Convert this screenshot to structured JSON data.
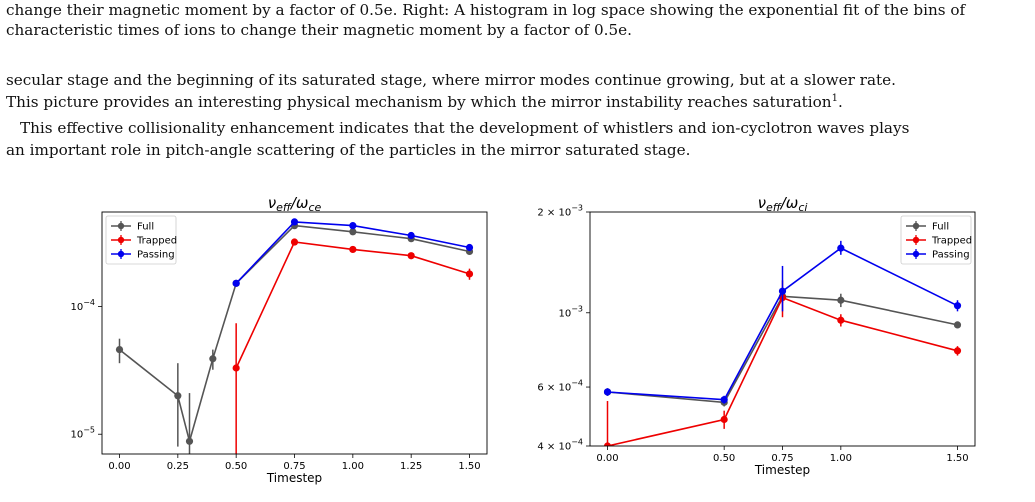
{
  "text": {
    "caption_line1": "change their magnetic moment by a factor of 0.5e. Right: A histogram in log space showing the exponential fit of the bins of",
    "caption_line2": "characteristic times of ions to change their magnetic moment by a factor of 0.5e.",
    "p1_line1": "secular stage and the beginning of its saturated stage, where mirror modes continue growing, but at a slower rate.",
    "p1_line2": "This picture provides an interesting physical mechanism by which the mirror instability reaches saturation",
    "footnote_mark": "1",
    "p1_end": ".",
    "p2_line1": "This effective collisionality enhancement indicates that the development of whistlers and ion-cyclotron waves plays",
    "p2_line2": "an important role in pitch-angle scattering of the particles in the mirror saturated stage."
  },
  "chart_data": [
    {
      "type": "line",
      "title": "ν_eff/ω_ce",
      "xlabel": "Timestep",
      "ylabel": "",
      "yscale": "log",
      "xlim": [
        -0.075,
        1.575
      ],
      "ylim": [
        7e-06,
        0.00055
      ],
      "xticks": [
        "0.00",
        "0.25",
        "0.50",
        "0.75",
        "1.00",
        "1.25",
        "1.50"
      ],
      "yticks": [
        "10^-4",
        "10^-5"
      ],
      "legend": "top-left",
      "series": [
        {
          "name": "Full",
          "color": "#555555",
          "x": [
            0.0,
            0.25,
            0.3,
            0.4,
            0.5,
            0.75,
            1.0,
            1.25,
            1.5
          ],
          "y": [
            4.6e-05,
            2e-05,
            8.8e-06,
            3.9e-05,
            0.000152,
            0.00043,
            0.000385,
            0.00034,
            0.00027
          ],
          "err_lo": [
            3.6e-05,
            8e-06,
            6e-06,
            3.2e-05,
            0.000145,
            0.00041,
            0.000365,
            0.00032,
            0.000255
          ],
          "err_hi": [
            5.6e-05,
            3.6e-05,
            2.1e-05,
            4.6e-05,
            0.00016,
            0.00045,
            0.000405,
            0.00036,
            0.000285
          ]
        },
        {
          "name": "Trapped",
          "color": "#ee0000",
          "x": [
            0.5,
            0.75,
            1.0,
            1.25,
            1.5
          ],
          "y": [
            3.3e-05,
            0.00032,
            0.00028,
            0.00025,
            0.00018
          ],
          "err_lo": [
            7e-06,
            0.000305,
            0.000266,
            0.000238,
            0.000162
          ],
          "err_hi": [
            7.4e-05,
            0.000335,
            0.000294,
            0.000262,
            0.000198
          ]
        },
        {
          "name": "Passing",
          "color": "#0000ee",
          "x": [
            0.5,
            0.75,
            1.0,
            1.25,
            1.5
          ],
          "y": [
            0.000152,
            0.00046,
            0.00043,
            0.00036,
            0.00029
          ],
          "err_lo": [
            0.000145,
            0.00044,
            0.00041,
            0.00034,
            0.000275
          ],
          "err_hi": [
            0.00016,
            0.00048,
            0.00045,
            0.00038,
            0.000305
          ]
        }
      ]
    },
    {
      "type": "line",
      "title": "ν_eff/ω_ci",
      "xlabel": "Timestep",
      "ylabel": "",
      "yscale": "log",
      "xlim": [
        -0.075,
        1.575
      ],
      "ylim": [
        0.0004,
        0.002
      ],
      "xticks": [
        "0.00",
        "0.50",
        "0.75",
        "1.00",
        "1.50"
      ],
      "yticks": [
        "2 × 10^-3",
        "10^-3",
        "6 × 10^-4",
        "4 × 10^-4"
      ],
      "legend": "top-right",
      "series": [
        {
          "name": "Full",
          "color": "#555555",
          "x": [
            0.0,
            0.5,
            0.75,
            1.0,
            1.5
          ],
          "y": [
            0.00058,
            0.00054,
            0.00112,
            0.00109,
            0.00092
          ],
          "err_lo": [
            0.000565,
            0.000525,
            0.00107,
            0.00104,
            0.0009
          ],
          "err_hi": [
            0.000595,
            0.000555,
            0.00117,
            0.00114,
            0.00094
          ]
        },
        {
          "name": "Trapped",
          "color": "#ee0000",
          "x": [
            0.0,
            0.5,
            0.75,
            1.0,
            1.5
          ],
          "y": [
            0.0004,
            0.00048,
            0.00111,
            0.00095,
            0.00077
          ],
          "err_lo": [
            0.0004,
            0.00045,
            0.00097,
            0.00091,
            0.000745
          ],
          "err_hi": [
            0.000545,
            0.00051,
            0.00125,
            0.00099,
            0.000795
          ]
        },
        {
          "name": "Passing",
          "color": "#0000ee",
          "x": [
            0.0,
            0.5,
            0.75,
            1.0,
            1.5
          ],
          "y": [
            0.00058,
            0.00055,
            0.00116,
            0.00156,
            0.00105
          ],
          "err_lo": [
            0.000565,
            0.000535,
            0.00101,
            0.00149,
            0.00101
          ],
          "err_hi": [
            0.000595,
            0.000565,
            0.00138,
            0.00164,
            0.00109
          ]
        }
      ]
    }
  ]
}
